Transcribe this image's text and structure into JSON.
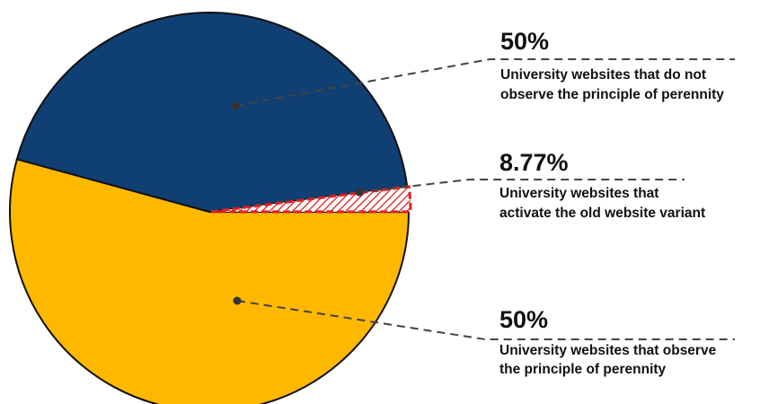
{
  "chart_data": {
    "type": "pie",
    "title": "",
    "slices": [
      {
        "label": "University websites that do not observe the principle of perennity",
        "value_label": "50%",
        "value": 50,
        "color": "#0f3f73",
        "line1": "University websites that do not",
        "line2": "observe the principle of perennity"
      },
      {
        "label": "University websites that activate the old website variant",
        "value_label": "8.77%",
        "value": 8.77,
        "color": "hatched-red",
        "line1": "University websites that",
        "line2": "activate the old website variant"
      },
      {
        "label": "University websites that observe the principle of perennity",
        "value_label": "50%",
        "value": 50,
        "color": "#ffb800",
        "line1": "University websites that observe",
        "line2": "the principle of perennity"
      }
    ],
    "legend": "none",
    "colors": {
      "navy": "#0f3f73",
      "gold": "#ffb800",
      "hatch_red": "#e02020",
      "outline": "#111111"
    }
  }
}
